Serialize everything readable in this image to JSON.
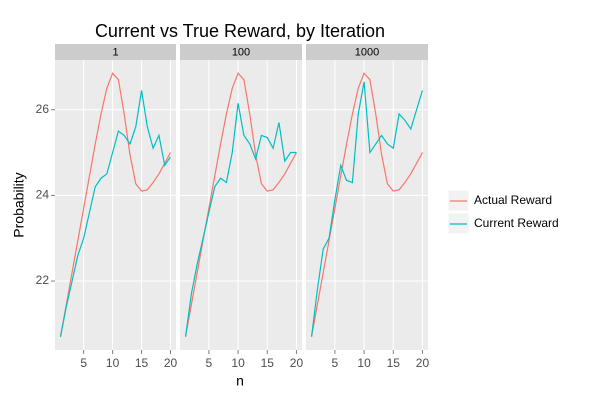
{
  "chart_data": {
    "type": "line",
    "title": "Current vs True Reward, by Iteration",
    "x_label": "n",
    "y_label": "Probability",
    "x": [
      1,
      2,
      3,
      4,
      5,
      6,
      7,
      8,
      9,
      10,
      11,
      12,
      13,
      14,
      15,
      16,
      17,
      18,
      19,
      20
    ],
    "xlim": [
      0.05,
      20.95
    ],
    "xticks": [
      5,
      10,
      15,
      20
    ],
    "ylim": [
      20.39,
      27.16
    ],
    "yticks": [
      22,
      24,
      26
    ],
    "grid": true,
    "legend": "right",
    "facets": [
      {
        "label": "1",
        "series": [
          {
            "name": "Actual Reward",
            "color": "#F8766D",
            "values": [
              20.7,
              21.45,
              22.2,
              22.95,
              23.7,
              24.45,
              25.2,
              25.9,
              26.5,
              26.85,
              26.7,
              25.9,
              24.95,
              24.27,
              24.1,
              24.13,
              24.3,
              24.5,
              24.75,
              25.0
            ]
          },
          {
            "name": "Current Reward",
            "color": "#00BFC4",
            "values": [
              20.7,
              21.4,
              22.0,
              22.6,
              23.0,
              23.6,
              24.2,
              24.4,
              24.5,
              25.0,
              25.5,
              25.4,
              25.2,
              25.6,
              26.45,
              25.6,
              25.1,
              25.4,
              24.7,
              24.9
            ]
          }
        ]
      },
      {
        "label": "100",
        "series": [
          {
            "name": "Actual Reward",
            "color": "#F8766D",
            "values": [
              20.7,
              21.45,
              22.2,
              22.95,
              23.7,
              24.45,
              25.2,
              25.9,
              26.5,
              26.85,
              26.7,
              25.9,
              24.95,
              24.27,
              24.1,
              24.13,
              24.3,
              24.5,
              24.75,
              25.0
            ]
          },
          {
            "name": "Current Reward",
            "color": "#00BFC4",
            "values": [
              20.7,
              21.7,
              22.4,
              23.0,
              23.6,
              24.2,
              24.4,
              24.3,
              25.0,
              26.15,
              25.4,
              25.2,
              24.85,
              25.4,
              25.35,
              25.1,
              25.7,
              24.8,
              25.0,
              25.0
            ]
          }
        ]
      },
      {
        "label": "1000",
        "series": [
          {
            "name": "Actual Reward",
            "color": "#F8766D",
            "values": [
              20.7,
              21.45,
              22.2,
              22.95,
              23.7,
              24.45,
              25.2,
              25.9,
              26.5,
              26.85,
              26.7,
              25.9,
              24.95,
              24.27,
              24.1,
              24.13,
              24.3,
              24.5,
              24.75,
              25.0
            ]
          },
          {
            "name": "Current Reward",
            "color": "#00BFC4",
            "values": [
              20.7,
              21.8,
              22.75,
              23.0,
              23.9,
              24.7,
              24.35,
              24.3,
              25.9,
              26.65,
              25.0,
              25.2,
              25.4,
              25.2,
              25.1,
              25.9,
              25.75,
              25.55,
              26.0,
              26.45
            ]
          }
        ]
      }
    ]
  }
}
